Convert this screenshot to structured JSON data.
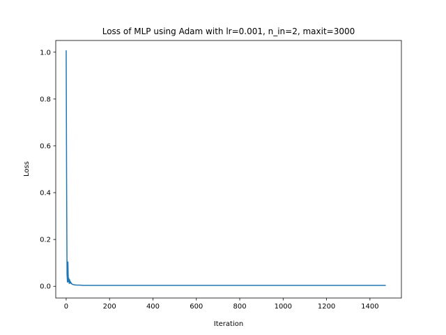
{
  "chart_data": {
    "type": "line",
    "title": "Loss of MLP using Adam with lr=0.001, n_in=2, maxit=3000",
    "xlabel": "Iteration",
    "ylabel": "Loss",
    "xlim": [
      -48,
      1545
    ],
    "ylim": [
      -0.05,
      1.05
    ],
    "xticks": [
      0,
      200,
      400,
      600,
      800,
      1000,
      1200,
      1400
    ],
    "yticks": [
      0.0,
      0.2,
      0.4,
      0.6,
      0.8,
      1.0
    ],
    "xtick_labels": [
      "0",
      "200",
      "400",
      "600",
      "800",
      "1000",
      "1200",
      "1400"
    ],
    "ytick_labels": [
      "0.0",
      "0.2",
      "0.4",
      "0.6",
      "0.8",
      "1.0"
    ],
    "grid": false,
    "series": [
      {
        "color": "#1f77b4",
        "x": [
          0,
          2,
          4,
          6,
          8,
          10,
          12,
          14,
          16,
          18,
          20,
          22,
          24,
          26,
          28,
          30,
          35,
          40,
          50,
          60,
          80,
          100,
          150,
          200,
          300,
          400,
          600,
          800,
          1000,
          1200,
          1400,
          1473
        ],
        "y": [
          1.008,
          0.45,
          0.05,
          0.018,
          0.104,
          0.02,
          0.035,
          0.012,
          0.028,
          0.015,
          0.02,
          0.012,
          0.014,
          0.01,
          0.009,
          0.008,
          0.007,
          0.006,
          0.005,
          0.005,
          0.004,
          0.004,
          0.004,
          0.004,
          0.004,
          0.004,
          0.004,
          0.004,
          0.004,
          0.004,
          0.004,
          0.004
        ]
      }
    ]
  }
}
